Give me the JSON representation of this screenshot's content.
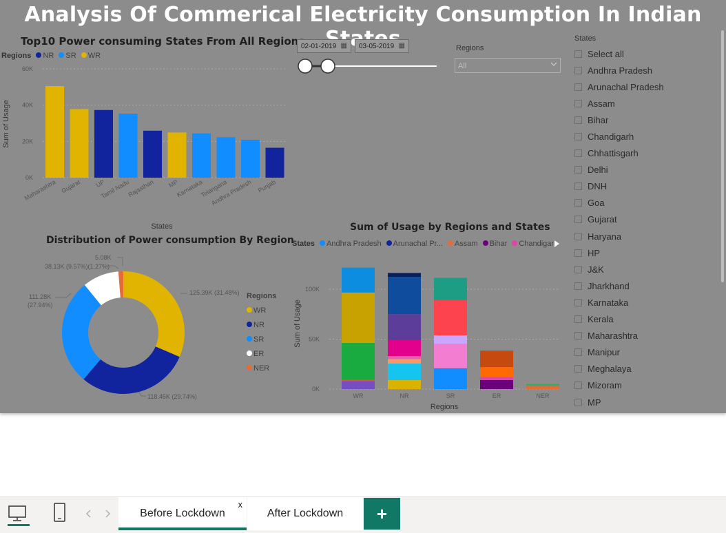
{
  "title": "Analysis Of Commerical Electricity Consumption In Indian States",
  "colors": {
    "WR": "#e0b400",
    "NR": "#12239e",
    "SR": "#118dff",
    "ER": "#ffffff",
    "NER": "#e66c37",
    "background": "#8c8c8c",
    "accent": "#117865"
  },
  "bar_visual": {
    "title": "Top10 Power consuming States From All Regions",
    "legend_title": "Regions",
    "legend": [
      "NR",
      "SR",
      "WR"
    ]
  },
  "donut_visual": {
    "title": "Distribution of Power consumption By Region",
    "legend_title": "Regions",
    "legend": [
      "WR",
      "NR",
      "SR",
      "ER",
      "NER"
    ],
    "labels": {
      "wr": "125.39K (31.48%)",
      "nr": "118.45K (29.74%)",
      "sr_1": "111.28K",
      "sr_2": "(27.94%)",
      "er": "38.13K (9.57%)(1.27%)",
      "ner": "5.08K"
    }
  },
  "stack_visual": {
    "title": "Sum of Usage by Regions and States",
    "legend_title": "States",
    "legend": [
      "Andhra Pradesh",
      "Arunachal Pr...",
      "Assam",
      "Bihar",
      "Chandigarh"
    ]
  },
  "chart_data": [
    {
      "type": "bar",
      "title": "Top10 Power consuming States From All Regions",
      "xlabel": "States",
      "ylabel": "Sum of Usage",
      "ylim": [
        0,
        60000
      ],
      "yticks": [
        "0K",
        "20K",
        "40K",
        "60K"
      ],
      "categories": [
        "Maharashtra",
        "Gujarat",
        "UP",
        "Tamil Nadu",
        "Rajasthan",
        "MP",
        "Karnataka",
        "Telangana",
        "Andhra Pradesh",
        "Punjab"
      ],
      "values": [
        50500,
        37800,
        37300,
        35300,
        25900,
        24900,
        24400,
        22300,
        20900,
        16500
      ],
      "regions": [
        "WR",
        "WR",
        "NR",
        "SR",
        "NR",
        "WR",
        "SR",
        "SR",
        "SR",
        "NR"
      ],
      "legend_position": "top-left",
      "grid": true
    },
    {
      "type": "pie",
      "subtype": "donut",
      "title": "Distribution of Power consumption By Region",
      "labels": [
        "WR",
        "NR",
        "SR",
        "ER",
        "NER"
      ],
      "values": [
        125390,
        118450,
        111280,
        38130,
        5080
      ],
      "percent": [
        31.48,
        29.74,
        27.94,
        9.57,
        1.27
      ],
      "legend_position": "right"
    },
    {
      "type": "bar",
      "subtype": "stacked",
      "title": "Sum of Usage by Regions and States",
      "xlabel": "Regions",
      "ylabel": "Sum of Usage",
      "ylim": [
        0,
        120000
      ],
      "yticks": [
        "0K",
        "50K",
        "100K"
      ],
      "categories": [
        "WR",
        "NR",
        "SR",
        "ER",
        "NER"
      ],
      "stacks": [
        [
          {
            "v": 8000,
            "c": "#744ec2"
          },
          {
            "v": 1200,
            "c": "#d9534f"
          },
          {
            "v": 37000,
            "c": "#1aab40"
          },
          {
            "v": 50500,
            "c": "#c8a300"
          },
          {
            "v": 24900,
            "c": "#0d8de0"
          }
        ],
        [
          {
            "v": 9000,
            "c": "#d9b300"
          },
          {
            "v": 16500,
            "c": "#16c4f0"
          },
          {
            "v": 4500,
            "c": "#f49a6a"
          },
          {
            "v": 3000,
            "c": "#e066a8"
          },
          {
            "v": 16000,
            "c": "#e3008c"
          },
          {
            "v": 26000,
            "c": "#5c3d99"
          },
          {
            "v": 37300,
            "c": "#0f4c9e"
          },
          {
            "v": 4000,
            "c": "#0c1f5a"
          }
        ],
        [
          {
            "v": 20900,
            "c": "#118dff"
          },
          {
            "v": 24400,
            "c": "#f27dd1"
          },
          {
            "v": 8500,
            "c": "#c9a7ff"
          },
          {
            "v": 35300,
            "c": "#fd434e"
          },
          {
            "v": 22300,
            "c": "#1d9e84"
          }
        ],
        [
          {
            "v": 9000,
            "c": "#6b007b"
          },
          {
            "v": 3000,
            "c": "#e044a7"
          },
          {
            "v": 10000,
            "c": "#fe6a00"
          },
          {
            "v": 16500,
            "c": "#c6490f"
          }
        ],
        [
          {
            "v": 2500,
            "c": "#e66c37"
          },
          {
            "v": 1500,
            "c": "#aa7b55"
          },
          {
            "v": 1000,
            "c": "#2eaa58"
          }
        ]
      ],
      "legend_position": "top-left",
      "grid": true
    }
  ],
  "filters": {
    "date_start": "02-01-2019",
    "date_end": "03-05-2019",
    "regions_label": "Regions",
    "regions_value": "All"
  },
  "states_slicer": {
    "title": "States",
    "items": [
      "Select all",
      "Andhra Pradesh",
      "Arunachal Pradesh",
      "Assam",
      "Bihar",
      "Chandigarh",
      "Chhattisgarh",
      "Delhi",
      "DNH",
      "Goa",
      "Gujarat",
      "Haryana",
      "HP",
      "J&K",
      "Jharkhand",
      "Karnataka",
      "Kerala",
      "Maharashtra",
      "Manipur",
      "Meghalaya",
      "Mizoram",
      "MP"
    ]
  },
  "tabs": {
    "items": [
      "Before Lockdown",
      "After Lockdown"
    ],
    "active": 0,
    "close_glyph": "x",
    "add_glyph": "+"
  }
}
